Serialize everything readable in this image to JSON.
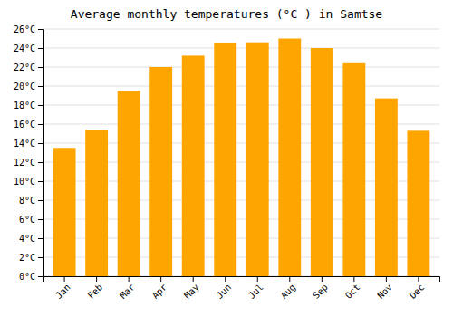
{
  "chart_data": {
    "type": "bar",
    "title": "Average monthly temperatures (°C ) in Samtse",
    "categories": [
      "Jan",
      "Feb",
      "Mar",
      "Apr",
      "May",
      "Jun",
      "Jul",
      "Aug",
      "Sep",
      "Oct",
      "Nov",
      "Dec"
    ],
    "values": [
      13.5,
      15.4,
      19.5,
      22.0,
      23.2,
      24.5,
      24.6,
      25.0,
      24.0,
      22.4,
      18.7,
      15.3
    ],
    "color": "#FFA500",
    "ylim": [
      0,
      26
    ],
    "yticks": [
      {
        "value": 0,
        "label": "0°C"
      },
      {
        "value": 2,
        "label": "2°C"
      },
      {
        "value": 4,
        "label": "4°C"
      },
      {
        "value": 6,
        "label": "6°C"
      },
      {
        "value": 8,
        "label": "8°C"
      },
      {
        "value": 10,
        "label": "10°C"
      },
      {
        "value": 12,
        "label": "12°C"
      },
      {
        "value": 14,
        "label": "14°C"
      },
      {
        "value": 16,
        "label": "16°C"
      },
      {
        "value": 18,
        "label": "18°C"
      },
      {
        "value": 20,
        "label": "20°C"
      },
      {
        "value": 22,
        "label": "22°C"
      },
      {
        "value": 24,
        "label": "24°C"
      },
      {
        "value": 26,
        "label": "26°C"
      }
    ],
    "grid": true
  }
}
